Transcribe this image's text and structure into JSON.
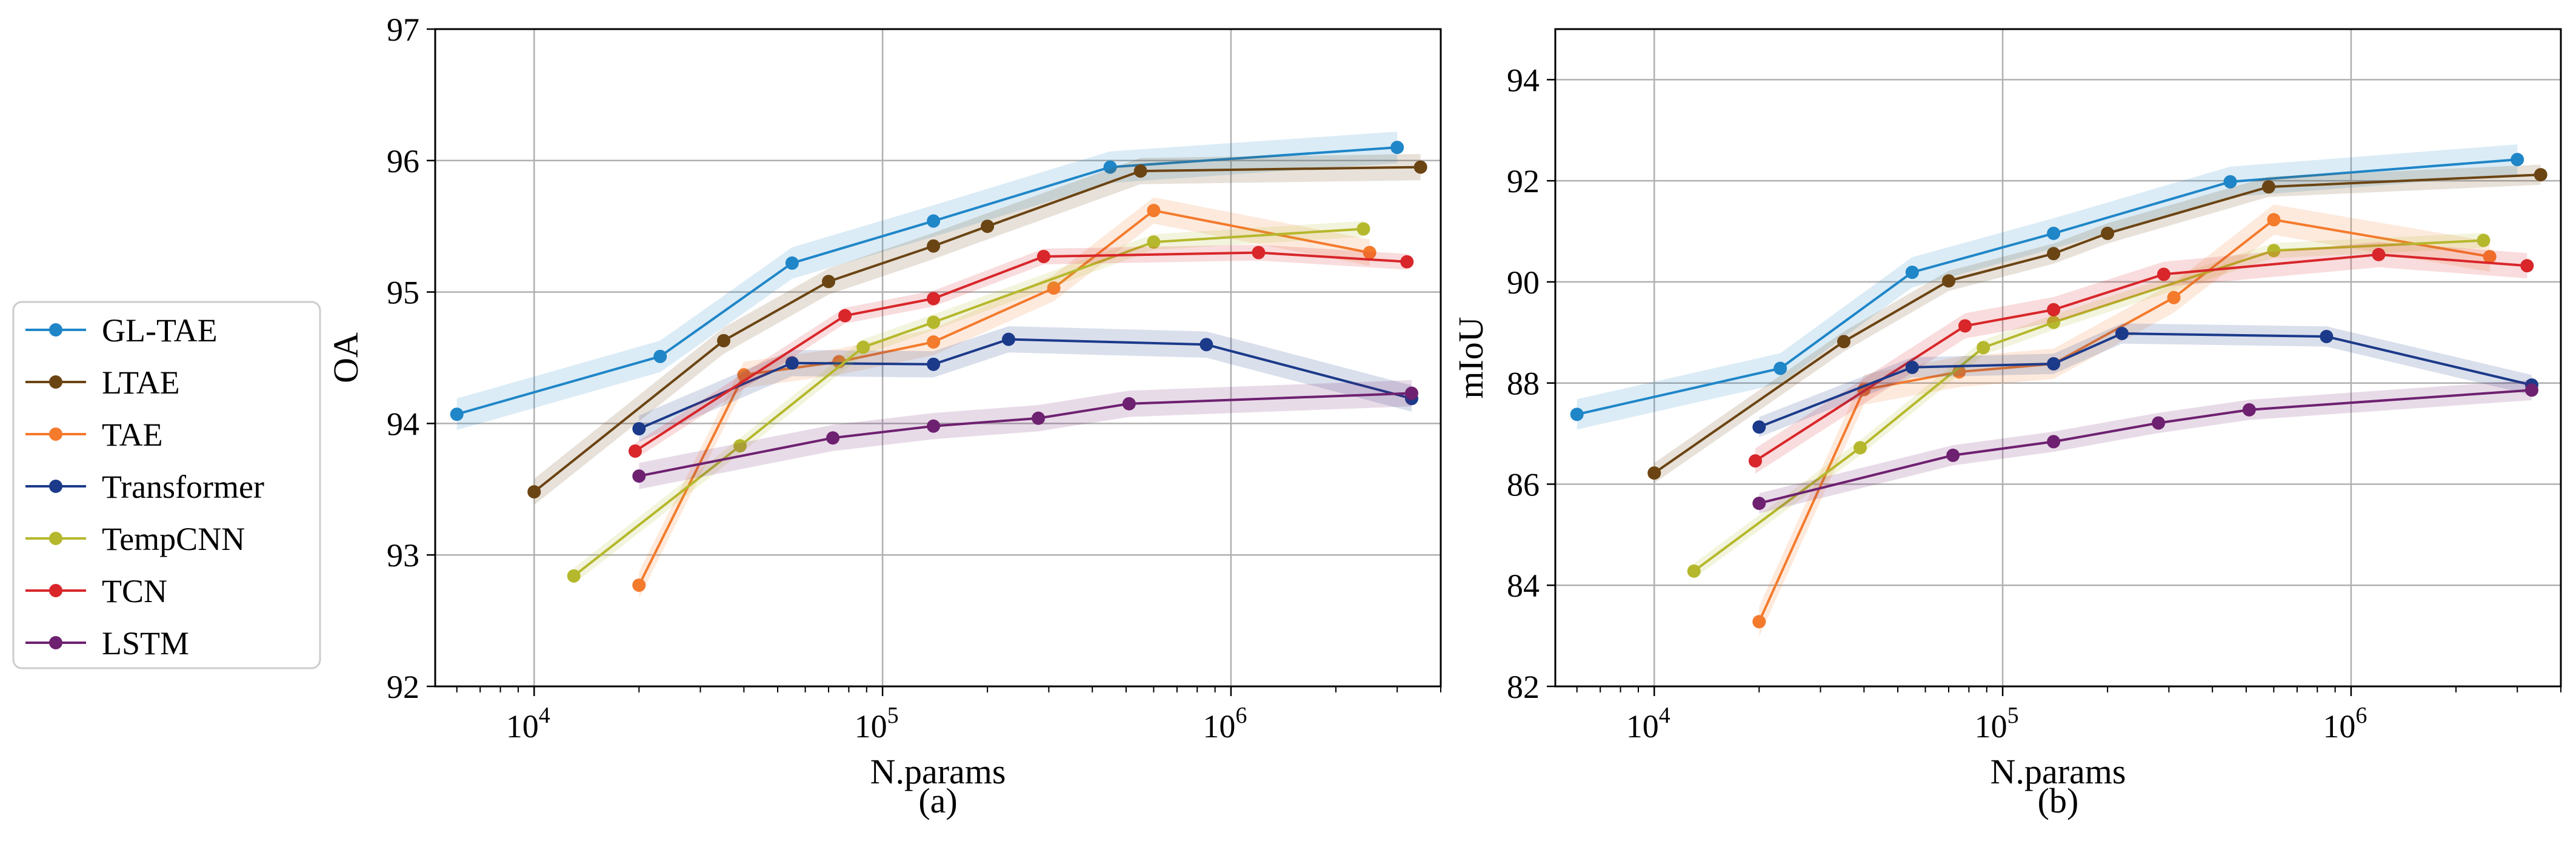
{
  "legend": {
    "entries": [
      {
        "name": "GL-TAE",
        "color": "#1f86c8"
      },
      {
        "name": "LTAE",
        "color": "#6b4413"
      },
      {
        "name": "TAE",
        "color": "#f47a2c"
      },
      {
        "name": "Transformer",
        "color": "#1b3a8a"
      },
      {
        "name": "TempCNN",
        "color": "#b5b82c"
      },
      {
        "name": "TCN",
        "color": "#d8262a"
      },
      {
        "name": "LSTM",
        "color": "#6e2170"
      }
    ]
  },
  "chart_data": [
    {
      "type": "line",
      "xscale": "log",
      "xlim": [
        5200,
        4000000
      ],
      "ylim": [
        92,
        97
      ],
      "yticks": [
        "92",
        "93",
        "94",
        "95",
        "96",
        "97"
      ],
      "xticks": [
        {
          "v": 10000,
          "b": "10",
          "e": "4"
        },
        {
          "v": 100000,
          "b": "10",
          "e": "5"
        },
        {
          "v": 1000000,
          "b": "10",
          "e": "6"
        }
      ],
      "xlabel": "N.params",
      "ylabel": "OA",
      "caption": "(a)",
      "grid": true,
      "series": [
        {
          "name": "GL-TAE",
          "band": 0.12,
          "points": [
            [
              6000,
              94.07
            ],
            [
              23000,
              94.51
            ],
            [
              55000,
              95.22
            ],
            [
              140000,
              95.54
            ],
            [
              450000,
              95.95
            ],
            [
              3000000,
              96.1
            ]
          ]
        },
        {
          "name": "LTAE",
          "band": 0.1,
          "points": [
            [
              10000,
              93.48
            ],
            [
              35000,
              94.63
            ],
            [
              70000,
              95.08
            ],
            [
              140000,
              95.35
            ],
            [
              200000,
              95.5
            ],
            [
              550000,
              95.92
            ],
            [
              3500000,
              95.95
            ]
          ]
        },
        {
          "name": "TAE",
          "band": 0.1,
          "points": [
            [
              20000,
              92.77
            ],
            [
              40000,
              94.37
            ],
            [
              75000,
              94.47
            ],
            [
              140000,
              94.62
            ],
            [
              310000,
              95.03
            ],
            [
              600000,
              95.62
            ],
            [
              2500000,
              95.3
            ]
          ]
        },
        {
          "name": "Transformer",
          "band": 0.1,
          "points": [
            [
              20000,
              93.96
            ],
            [
              55000,
              94.46
            ],
            [
              140000,
              94.45
            ],
            [
              230000,
              94.64
            ],
            [
              850000,
              94.6
            ],
            [
              3300000,
              94.19
            ]
          ]
        },
        {
          "name": "TempCNN",
          "band": 0.06,
          "points": [
            [
              13000,
              92.84
            ],
            [
              39000,
              93.83
            ],
            [
              88000,
              94.58
            ],
            [
              140000,
              94.77
            ],
            [
              600000,
              95.38
            ],
            [
              2400000,
              95.48
            ]
          ]
        },
        {
          "name": "TCN",
          "band": 0.06,
          "points": [
            [
              19500,
              93.79
            ],
            [
              78000,
              94.82
            ],
            [
              140000,
              94.95
            ],
            [
              290000,
              95.27
            ],
            [
              1200000,
              95.3
            ],
            [
              3200000,
              95.23
            ]
          ]
        },
        {
          "name": "LSTM",
          "band": 0.1,
          "points": [
            [
              20000,
              93.6
            ],
            [
              72000,
              93.89
            ],
            [
              140000,
              93.98
            ],
            [
              280000,
              94.04
            ],
            [
              510000,
              94.15
            ],
            [
              3300000,
              94.23
            ]
          ]
        }
      ]
    },
    {
      "type": "line",
      "xscale": "log",
      "xlim": [
        5200,
        4000000
      ],
      "ylim": [
        82,
        95
      ],
      "yticks": [
        "82",
        "84",
        "86",
        "88",
        "90",
        "92",
        "94"
      ],
      "xticks": [
        {
          "v": 10000,
          "b": "10",
          "e": "4"
        },
        {
          "v": 100000,
          "b": "10",
          "e": "5"
        },
        {
          "v": 1000000,
          "b": "10",
          "e": "6"
        }
      ],
      "xlabel": "N.params",
      "ylabel": "mIoU",
      "caption": "(b)",
      "grid": true,
      "series": [
        {
          "name": "GL-TAE",
          "band": 0.3,
          "points": [
            [
              6000,
              87.38
            ],
            [
              23000,
              88.29
            ],
            [
              55000,
              90.19
            ],
            [
              140000,
              90.96
            ],
            [
              450000,
              91.98
            ],
            [
              3000000,
              92.42
            ]
          ]
        },
        {
          "name": "LTAE",
          "band": 0.2,
          "points": [
            [
              10000,
              86.22
            ],
            [
              35000,
              88.82
            ],
            [
              70000,
              90.02
            ],
            [
              140000,
              90.56
            ],
            [
              200000,
              90.96
            ],
            [
              580000,
              91.88
            ],
            [
              3500000,
              92.12
            ]
          ]
        },
        {
          "name": "TAE",
          "band": 0.3,
          "points": [
            [
              20000,
              83.28
            ],
            [
              40000,
              87.87
            ],
            [
              75000,
              88.22
            ],
            [
              140000,
              88.38
            ],
            [
              310000,
              89.69
            ],
            [
              600000,
              91.23
            ],
            [
              2500000,
              90.5
            ]
          ]
        },
        {
          "name": "TempCNN",
          "band": 0.15,
          "points": [
            [
              13000,
              84.28
            ],
            [
              39000,
              86.72
            ],
            [
              88000,
              88.7
            ],
            [
              140000,
              89.2
            ],
            [
              600000,
              90.62
            ],
            [
              2400000,
              90.82
            ]
          ]
        },
        {
          "name": "TCN",
          "band": 0.25,
          "points": [
            [
              19500,
              86.46
            ],
            [
              78000,
              89.13
            ],
            [
              140000,
              89.45
            ],
            [
              290000,
              90.15
            ],
            [
              1200000,
              90.54
            ],
            [
              3200000,
              90.32
            ]
          ]
        },
        {
          "name": "Transformer",
          "band": 0.2,
          "points": [
            [
              20000,
              87.13
            ],
            [
              55000,
              88.31
            ],
            [
              140000,
              88.38
            ],
            [
              220000,
              88.98
            ],
            [
              850000,
              88.92
            ],
            [
              3300000,
              87.96
            ]
          ]
        },
        {
          "name": "LSTM",
          "band": 0.2,
          "points": [
            [
              20000,
              85.62
            ],
            [
              72000,
              86.57
            ],
            [
              140000,
              86.84
            ],
            [
              280000,
              87.21
            ],
            [
              510000,
              87.47
            ],
            [
              3300000,
              87.86
            ]
          ]
        }
      ]
    }
  ]
}
